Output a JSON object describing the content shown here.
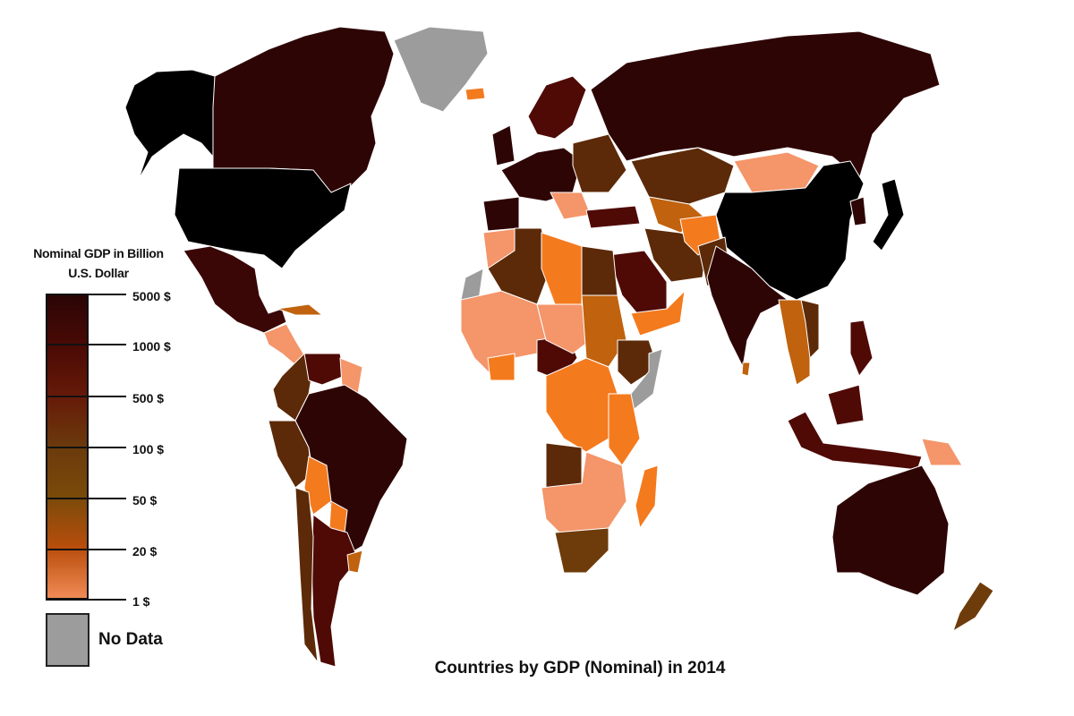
{
  "title": "Countries by GDP (Nominal) in 2014",
  "legend": {
    "title_line1": "Nominal GDP in Billion",
    "title_line2": "U.S. Dollar",
    "ticks": [
      "5000 $",
      "1000 $",
      "500 $",
      "100 $",
      "50 $",
      "20 $",
      "1 $"
    ],
    "no_data_label": "No Data",
    "gradient_colors": [
      "#2a0505",
      "#4a0a05",
      "#661a08",
      "#6b3a0c",
      "#7a4a0a",
      "#b84e0c",
      "#f08a55"
    ],
    "no_data_color": "#9c9c9c"
  },
  "tier_colors": {
    "over_5000": "#000000",
    "1000_5000": "#2e0505",
    "500_1000": "#4f0a06",
    "100_500": "#5c2a08",
    "50_100": "#6e3c0a",
    "20_50": "#c0620e",
    "10_20": "#f47a1e",
    "1_10": "#f4956a",
    "no_data": "#9c9c9c"
  }
}
